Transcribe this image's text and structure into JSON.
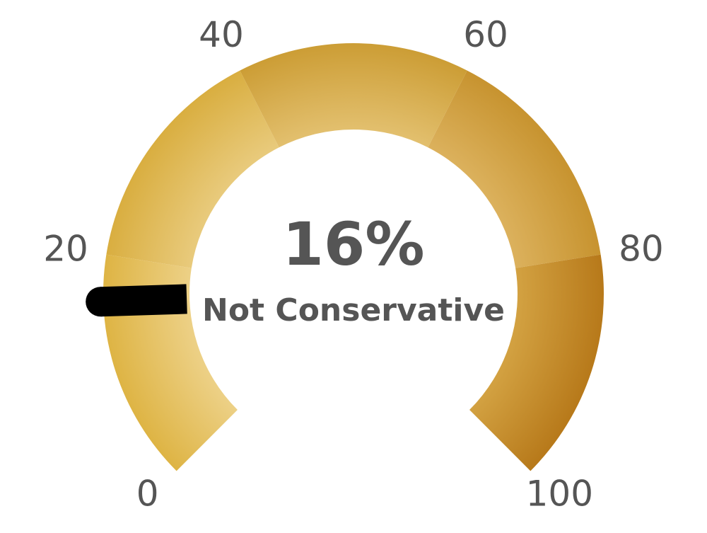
{
  "chart_data": {
    "type": "gauge",
    "min": 0,
    "max": 100,
    "value": 16,
    "value_label": "16%",
    "label": "Not Conservative",
    "tick_labels": [
      "0",
      "20",
      "40",
      "60",
      "80",
      "100"
    ],
    "ticks": [
      0,
      20,
      40,
      60,
      80,
      100
    ],
    "bands": [
      {
        "from": 0,
        "to": 20,
        "color": "#deb444",
        "light": "#efd591"
      },
      {
        "from": 20,
        "to": 40,
        "color": "#d9ae40",
        "light": "#ebcf86"
      },
      {
        "from": 40,
        "to": 60,
        "color": "#cc9d35",
        "light": "#e6c577"
      },
      {
        "from": 60,
        "to": 80,
        "color": "#c7932f",
        "light": "#dfb664"
      },
      {
        "from": 80,
        "to": 100,
        "color": "#b7791a",
        "light": "#d7a848"
      }
    ],
    "needle_color": "#000000",
    "text_color": "#555555"
  }
}
